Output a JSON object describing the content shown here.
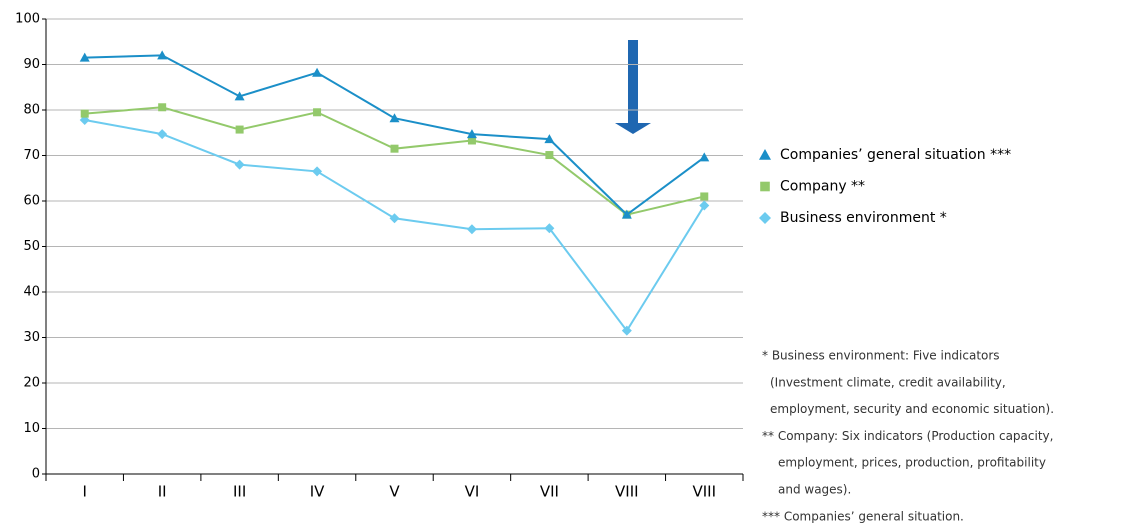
{
  "chart_data": {
    "type": "line",
    "categories": [
      "I",
      "II",
      "III",
      "IV",
      "V",
      "VI",
      "VII",
      "VIII",
      "VIII"
    ],
    "series": [
      {
        "name": "Companies’ general situation ***",
        "color": "#1b8fc8",
        "marker": "triangle",
        "values": [
          91.5,
          92,
          83,
          88.2,
          78.2,
          74.7,
          73.6,
          57,
          69.6
        ]
      },
      {
        "name": "Company **",
        "color": "#93c96b",
        "marker": "square",
        "values": [
          79.2,
          80.6,
          75.7,
          79.5,
          71.5,
          73.3,
          70.1,
          57,
          61
        ]
      },
      {
        "name": "Business environment *",
        "color": "#6ccbef",
        "marker": "diamond",
        "values": [
          77.8,
          74.7,
          68,
          66.5,
          56.2,
          53.8,
          54,
          31.5,
          59
        ]
      }
    ],
    "ylim": [
      0,
      100
    ],
    "yticks": [
      0,
      10,
      20,
      30,
      40,
      50,
      60,
      70,
      80,
      90,
      100
    ],
    "grid": true,
    "legend": "right",
    "footnotes": [
      "* Business environment: Five indicators",
      "(Investment climate, credit availability,",
      "employment, security and economic situation).",
      "** Company: Six indicators (Production capacity,",
      "employment, prices, production, profitability",
      "and wages).",
      "*** Companies’ general situation."
    ]
  }
}
